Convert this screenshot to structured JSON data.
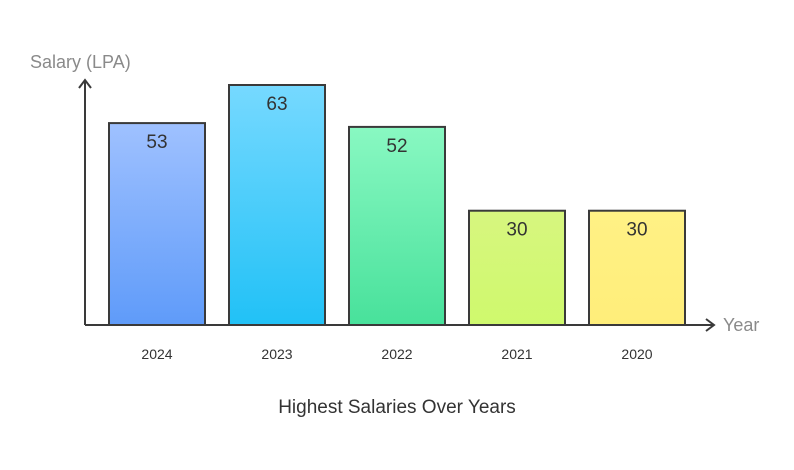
{
  "chart_data": {
    "type": "bar",
    "title": "Highest Salaries Over Years",
    "xlabel": "Year",
    "ylabel": "Salary (LPA)",
    "categories": [
      "2024",
      "2023",
      "2022",
      "2021",
      "2020"
    ],
    "values": [
      53,
      63,
      52,
      30,
      30
    ],
    "ylim": [
      0,
      63
    ],
    "grid": false,
    "legend": "none",
    "bar_colors": [
      {
        "top": "#9fc1ff",
        "bottom": "#5f9bf9"
      },
      {
        "top": "#76d9ff",
        "bottom": "#21c1f6"
      },
      {
        "top": "#89f8c2",
        "bottom": "#48e19b"
      },
      {
        "top": "#d7f67f",
        "bottom": "#cff96d"
      },
      {
        "top": "#fff185",
        "bottom": "#ffee7a"
      }
    ],
    "bar_stroke": "#3a3a3a",
    "axis_color": "#3a3a3a"
  }
}
